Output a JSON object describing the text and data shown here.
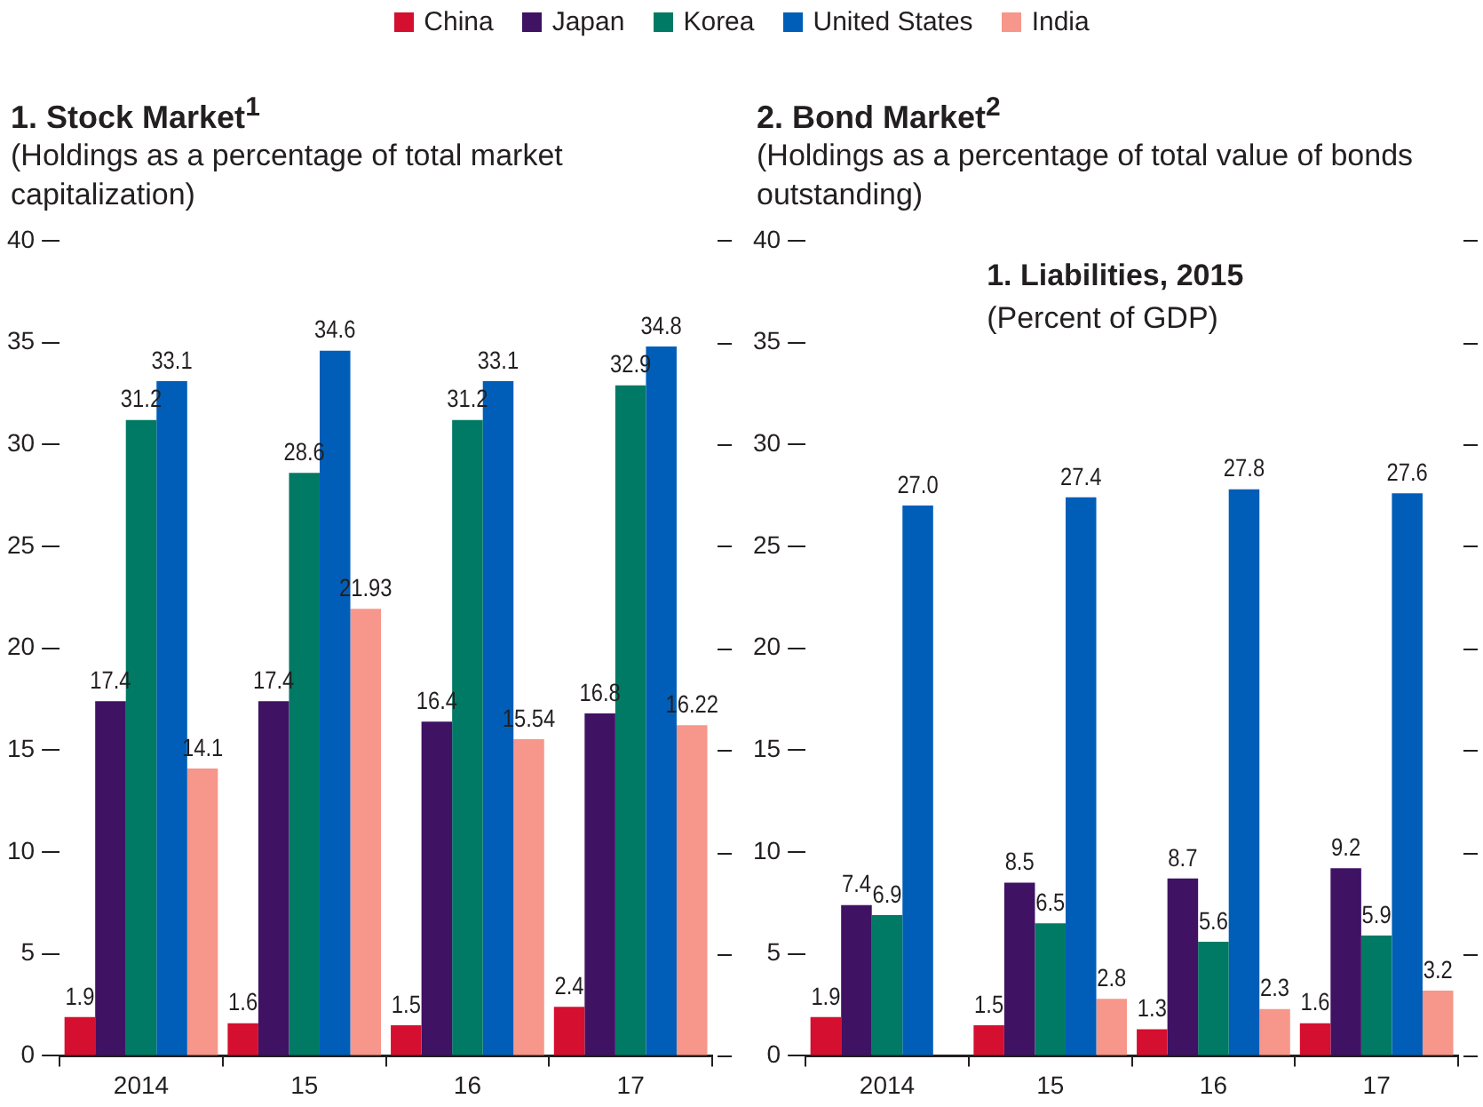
{
  "chart_data": [
    {
      "type": "bar",
      "title": "1. Stock Market$^{1}$",
      "subtitle": "(Holdings as a percentage of total market capitalization)",
      "categories": [
        "2014",
        "15",
        "16",
        "17"
      ],
      "ylim": [
        0,
        40
      ],
      "yticks": [
        0,
        5,
        10,
        15,
        20,
        25,
        30,
        35,
        40
      ],
      "legend": "top",
      "series": [
        {
          "name": "China",
          "color": "#d50f2f",
          "values": [
            1.9,
            1.6,
            1.5,
            2.4
          ],
          "value_labels": [
            "1.9",
            "1.6",
            "1.5",
            "2.4"
          ]
        },
        {
          "name": "Japan",
          "color": "#3f1263",
          "values": [
            17.4,
            17.4,
            16.4,
            16.8
          ],
          "value_labels": [
            "17.4",
            "17.4",
            "16.4",
            "16.8"
          ]
        },
        {
          "name": "Korea",
          "color": "#007a64",
          "values": [
            31.2,
            28.6,
            31.2,
            32.9
          ],
          "value_labels": [
            "31.2",
            "28.6",
            "31.2",
            "32.9"
          ]
        },
        {
          "name": "United States",
          "color": "#005eb8",
          "values": [
            33.1,
            34.6,
            33.1,
            34.8
          ],
          "value_labels": [
            "33.1",
            "34.6",
            "33.1",
            "34.8"
          ]
        },
        {
          "name": "India",
          "color": "#f7968a",
          "values": [
            14.1,
            21.93,
            15.54,
            16.22
          ],
          "value_labels": [
            "14.1",
            "21.93",
            "15.54",
            "16.22"
          ]
        }
      ]
    },
    {
      "type": "bar",
      "title": "2. Bond Market$^{2}$",
      "subtitle": "(Holdings as a percentage of total value of bonds outstanding)",
      "categories": [
        "2014",
        "15",
        "16",
        "17"
      ],
      "ylim": [
        0,
        40
      ],
      "yticks": [
        0,
        5,
        10,
        15,
        20,
        25,
        30,
        35,
        40
      ],
      "annotations": [
        "1. Liabilities, 2015",
        "(Percent of GDP)"
      ],
      "series": [
        {
          "color": "#d50f2f",
          "values": [
            1.9,
            1.5,
            1.3,
            1.6
          ],
          "value_labels": [
            "1.9",
            "1.5",
            "1.3",
            "1.6"
          ]
        },
        {
          "color": "#3f1263",
          "values": [
            7.4,
            8.5,
            8.7,
            9.2
          ],
          "value_labels": [
            "7.4",
            "8.5",
            "8.7",
            "9.2"
          ]
        },
        {
          "color": "#007a64",
          "values": [
            6.9,
            6.5,
            5.6,
            5.9
          ],
          "value_labels": [
            "6.9",
            "6.5",
            "5.6",
            "5.9"
          ]
        },
        {
          "color": "#005eb8",
          "values": [
            27.0,
            27.4,
            27.8,
            27.6
          ],
          "value_labels": [
            "27.0",
            "27.4",
            "27.8",
            "27.6"
          ]
        },
        {
          "color": "#f7968a",
          "values": [
            null,
            2.8,
            2.3,
            3.2
          ],
          "value_labels": [
            null,
            "2.8",
            "2.3",
            "3.2"
          ]
        }
      ]
    }
  ]
}
